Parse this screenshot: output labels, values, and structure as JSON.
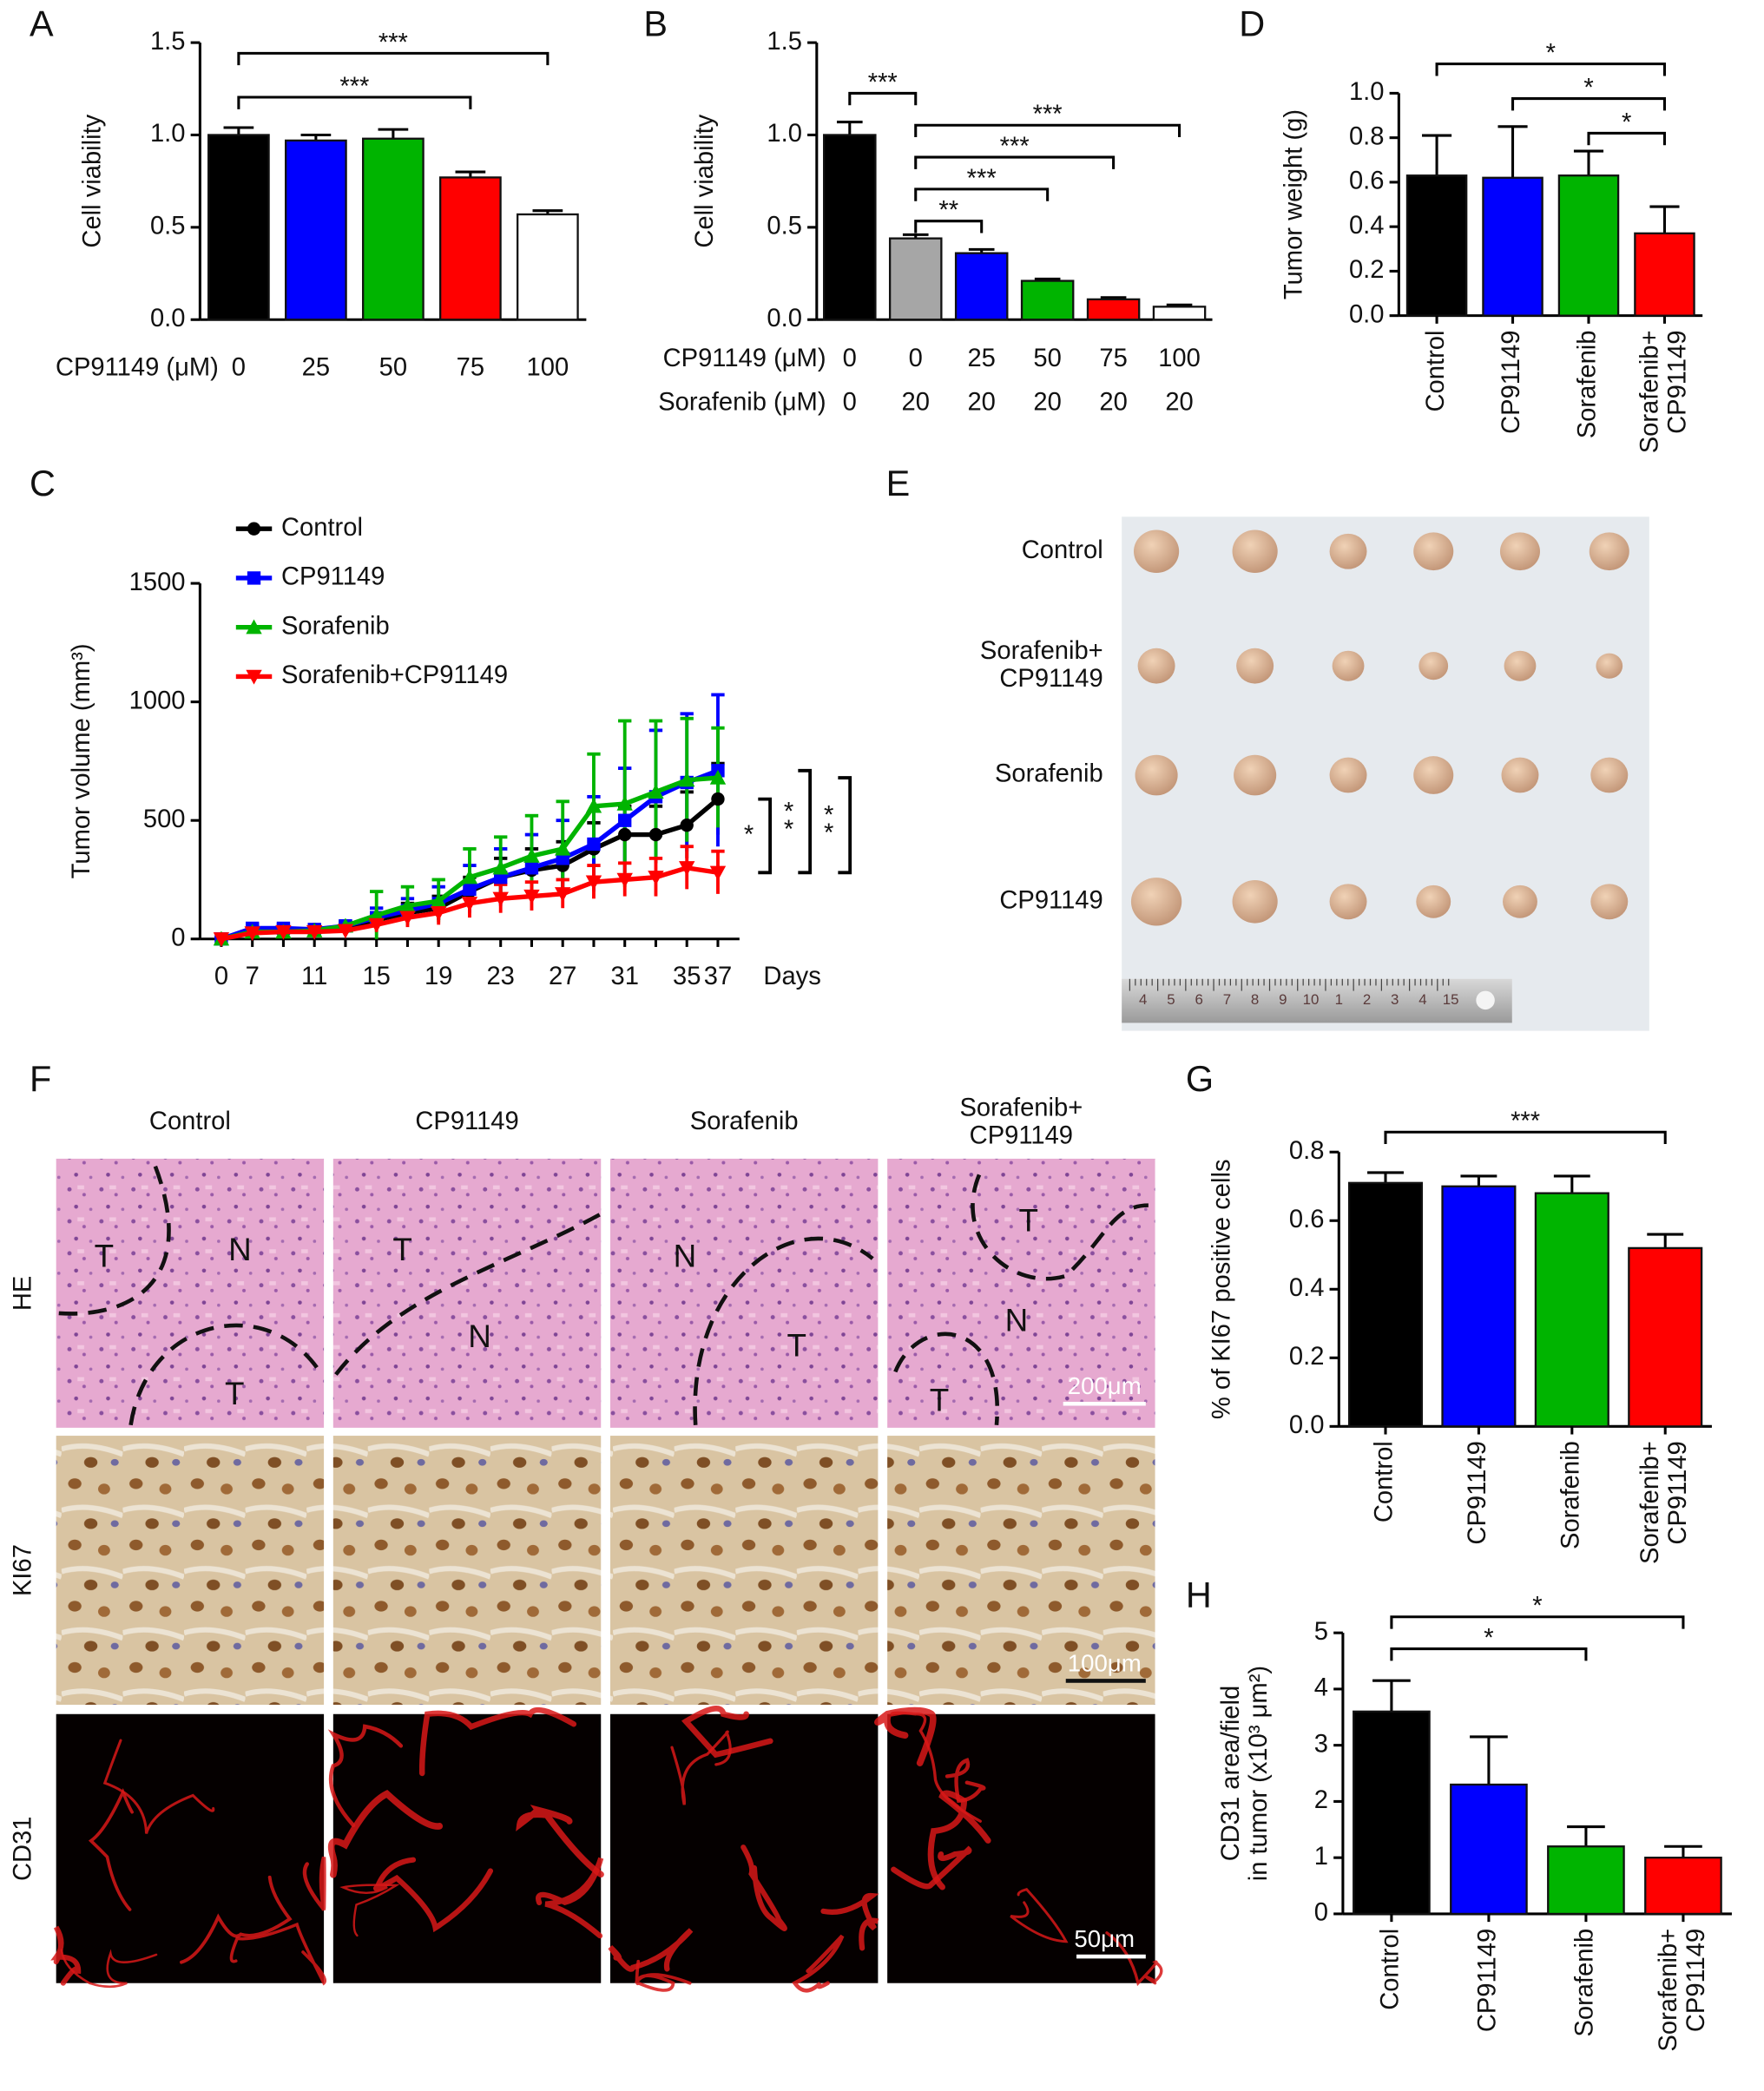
{
  "chart_data": [
    {
      "panel": "A",
      "type": "bar",
      "ylabel": "Cell viability",
      "category_title": "CP91149 (μM)",
      "categories": [
        "0",
        "25",
        "50",
        "75",
        "100"
      ],
      "values": [
        1.0,
        0.97,
        0.98,
        0.77,
        0.57
      ],
      "errors": [
        0.04,
        0.03,
        0.05,
        0.03,
        0.02
      ],
      "colors": [
        "#000000",
        "#0000ff",
        "#00b400",
        "#ff0000",
        "#ffffff"
      ],
      "ylim": [
        0,
        1.5
      ],
      "yticks": [
        {
          "value": 0,
          "label": "0.0"
        },
        0.5,
        {
          "value": 1,
          "label": "1.0"
        },
        1.5
      ],
      "annotations": [
        {
          "text": "***",
          "pair": [
            0,
            4
          ]
        },
        {
          "text": "***",
          "pair": [
            0,
            3
          ]
        }
      ]
    },
    {
      "panel": "B",
      "type": "bar",
      "ylabel": "Cell viability",
      "category_title": "CP91149 (μM)",
      "categories": [
        "0",
        "0",
        "25",
        "50",
        "75",
        "100"
      ],
      "category_title_2": "Sorafenib (μM)",
      "categories_2": [
        "0",
        "20",
        "20",
        "20",
        "20",
        "20"
      ],
      "values": [
        1.0,
        0.44,
        0.36,
        0.21,
        0.11,
        0.07
      ],
      "errors": [
        0.07,
        0.02,
        0.02,
        0.01,
        0.01,
        0.01
      ],
      "colors": [
        "#000000",
        "#a6a6a6",
        "#0000ff",
        "#00b400",
        "#ff0000",
        "#ffffff"
      ],
      "ylim": [
        0,
        1.5
      ],
      "yticks": [
        {
          "value": 0,
          "label": "0.0"
        },
        0.5,
        {
          "value": 1,
          "label": "1.0"
        },
        1.5
      ],
      "annotations": [
        {
          "text": "***",
          "pair": [
            0,
            1
          ]
        },
        {
          "text": "***",
          "pair": [
            1,
            5
          ]
        },
        {
          "text": "***",
          "pair": [
            1,
            4
          ]
        },
        {
          "text": "***",
          "pair": [
            1,
            3
          ]
        },
        {
          "text": "**",
          "pair": [
            1,
            2
          ]
        }
      ]
    },
    {
      "panel": "C",
      "type": "line",
      "ylabel": "Tumor volume (mm³)",
      "xlabel": "Days",
      "categories": [
        "0",
        "7",
        null,
        "11",
        null,
        "15",
        null,
        "19",
        null,
        "23",
        null,
        "27",
        null,
        "31",
        null,
        "35",
        "37"
      ],
      "ylim": [
        0,
        1500
      ],
      "yticks": [
        0,
        500,
        1000,
        1500
      ],
      "series": [
        {
          "name": "Control",
          "color": "#000000",
          "marker": "circle",
          "values": [
            0,
            30,
            35,
            40,
            50,
            80,
            110,
            130,
            200,
            260,
            290,
            310,
            380,
            440,
            440,
            480,
            590
          ],
          "errors": [
            5,
            15,
            15,
            15,
            20,
            30,
            40,
            50,
            60,
            80,
            90,
            100,
            110,
            120,
            120,
            140,
            150
          ]
        },
        {
          "name": "CP91149",
          "color": "#0000ff",
          "marker": "square",
          "values": [
            0,
            45,
            45,
            40,
            55,
            90,
            120,
            150,
            210,
            260,
            300,
            340,
            400,
            500,
            600,
            660,
            710
          ],
          "errors": [
            5,
            15,
            15,
            15,
            20,
            40,
            50,
            70,
            100,
            120,
            140,
            160,
            200,
            220,
            280,
            290,
            320
          ]
        },
        {
          "name": "Sorafenib",
          "color": "#00b400",
          "marker": "triangle-up",
          "values": [
            0,
            30,
            30,
            35,
            55,
            100,
            140,
            160,
            260,
            300,
            350,
            380,
            560,
            570,
            620,
            670,
            680
          ],
          "errors": [
            5,
            15,
            15,
            15,
            20,
            100,
            80,
            90,
            120,
            130,
            170,
            200,
            220,
            350,
            300,
            260,
            210
          ]
        },
        {
          "name": "Sorafenib+CP91149",
          "color": "#ff0000",
          "marker": "triangle-down",
          "values": [
            0,
            25,
            30,
            30,
            35,
            60,
            90,
            110,
            150,
            170,
            180,
            190,
            240,
            250,
            260,
            300,
            280
          ],
          "errors": [
            5,
            10,
            10,
            10,
            15,
            30,
            40,
            50,
            60,
            60,
            60,
            60,
            70,
            70,
            80,
            90,
            90
          ]
        }
      ],
      "annotations": [
        {
          "text": "*",
          "pair": [
            0,
            3
          ]
        },
        {
          "text": "**",
          "pair": [
            1,
            3
          ]
        },
        {
          "text": "**",
          "pair": [
            2,
            3
          ]
        }
      ]
    },
    {
      "panel": "D",
      "type": "bar",
      "ylabel": "Tumor weight (g)",
      "categories": [
        "Control",
        "CP91149",
        "Sorafenib",
        "Sorafenib+\nCP91149"
      ],
      "values": [
        0.63,
        0.62,
        0.63,
        0.37
      ],
      "errors": [
        0.18,
        0.23,
        0.11,
        0.12
      ],
      "colors": [
        "#000000",
        "#0000ff",
        "#00b400",
        "#ff0000"
      ],
      "ylim": [
        0,
        1.0
      ],
      "yticks": [
        {
          "value": 0,
          "label": "0.0"
        },
        0.2,
        0.4,
        0.6,
        0.8,
        {
          "value": 1,
          "label": "1.0"
        }
      ],
      "annotations": [
        {
          "text": "*",
          "pair": [
            0,
            3
          ]
        },
        {
          "text": "*",
          "pair": [
            1,
            3
          ]
        },
        {
          "text": "*",
          "pair": [
            2,
            3
          ]
        }
      ]
    },
    {
      "panel": "G",
      "type": "bar",
      "ylabel": "% of KI67 positive cells",
      "categories": [
        "Control",
        "CP91149",
        "Sorafenib",
        "Sorafenib+\nCP91149"
      ],
      "values": [
        0.71,
        0.7,
        0.68,
        0.52
      ],
      "errors": [
        0.03,
        0.03,
        0.05,
        0.04
      ],
      "colors": [
        "#000000",
        "#0000ff",
        "#00b400",
        "#ff0000"
      ],
      "ylim": [
        0,
        0.8
      ],
      "yticks": [
        {
          "value": 0,
          "label": "0.0"
        },
        0.2,
        0.4,
        0.6,
        0.8
      ],
      "annotations": [
        {
          "text": "***",
          "pair": [
            0,
            3
          ]
        }
      ]
    },
    {
      "panel": "H",
      "type": "bar",
      "ylabel": "CD31 area/field\nin tumor (x10³ μm²)",
      "categories": [
        "Control",
        "CP91149",
        "Sorafenib",
        "Sorafenib+\nCP91149"
      ],
      "values": [
        3.6,
        2.3,
        1.2,
        1.0
      ],
      "errors": [
        0.55,
        0.85,
        0.35,
        0.2
      ],
      "colors": [
        "#000000",
        "#0000ff",
        "#00b400",
        "#ff0000"
      ],
      "ylim": [
        0,
        5
      ],
      "yticks": [
        0,
        1,
        2,
        3,
        4,
        5
      ],
      "annotations": [
        {
          "text": "*",
          "pair": [
            0,
            3
          ]
        },
        {
          "text": "*",
          "pair": [
            0,
            2
          ]
        }
      ]
    }
  ],
  "figure_E": {
    "panel": "E",
    "rows": [
      "Control",
      "Sorafenib+\nCP91149",
      "Sorafenib",
      "CP91149"
    ],
    "ruler_labels": [
      "4",
      "5",
      "6",
      "7",
      "8",
      "9",
      "10",
      "1",
      "2",
      "3",
      "4",
      "15"
    ]
  },
  "figure_F": {
    "panel": "F",
    "columns": [
      "Control",
      "CP91149",
      "Sorafenib",
      "Sorafenib+\nCP91149"
    ],
    "rows": [
      "HE",
      "KI67",
      "CD31"
    ],
    "scale_bars": [
      "200μm",
      "100μm",
      "50μm"
    ],
    "he_regions": [
      [
        "T",
        "N",
        "T"
      ],
      [
        "T",
        "N"
      ],
      [
        "N",
        "T"
      ],
      [
        "T",
        "N",
        "T"
      ]
    ]
  }
}
